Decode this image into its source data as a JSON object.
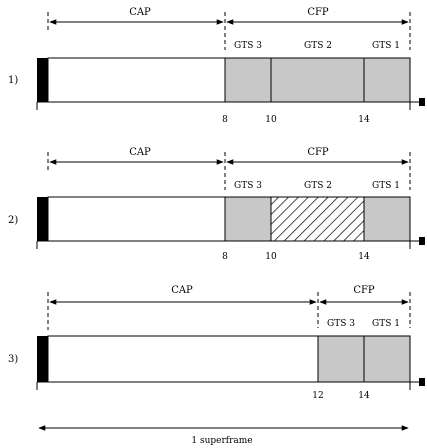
{
  "rows": [
    {
      "label": "1)",
      "cap_label": "CAP",
      "cfp_label": "CFP",
      "gts_labels": [
        "GTS 3",
        "GTS 2",
        "GTS 1"
      ],
      "tick_labels": [
        "8",
        "10",
        "14"
      ],
      "hatched_slot": null
    },
    {
      "label": "2)",
      "cap_label": "CAP",
      "cfp_label": "CFP",
      "gts_labels": [
        "GTS 3",
        "GTS 2",
        "GTS 1"
      ],
      "tick_labels": [
        "8",
        "10",
        "14"
      ],
      "hatched_slot": "GTS 2"
    },
    {
      "label": "3)",
      "cap_label": "CAP",
      "cfp_label": "CFP",
      "gts_labels": [
        "GTS 3",
        "GTS 1"
      ],
      "tick_labels": [
        "12",
        "14"
      ],
      "hatched_slot": null
    }
  ],
  "superframe_label": "1 superframe",
  "colors": {
    "beacon": "#000000",
    "gts_fill": "#c8c8c8",
    "cap_fill": "#ffffff",
    "stroke": "#000000"
  }
}
